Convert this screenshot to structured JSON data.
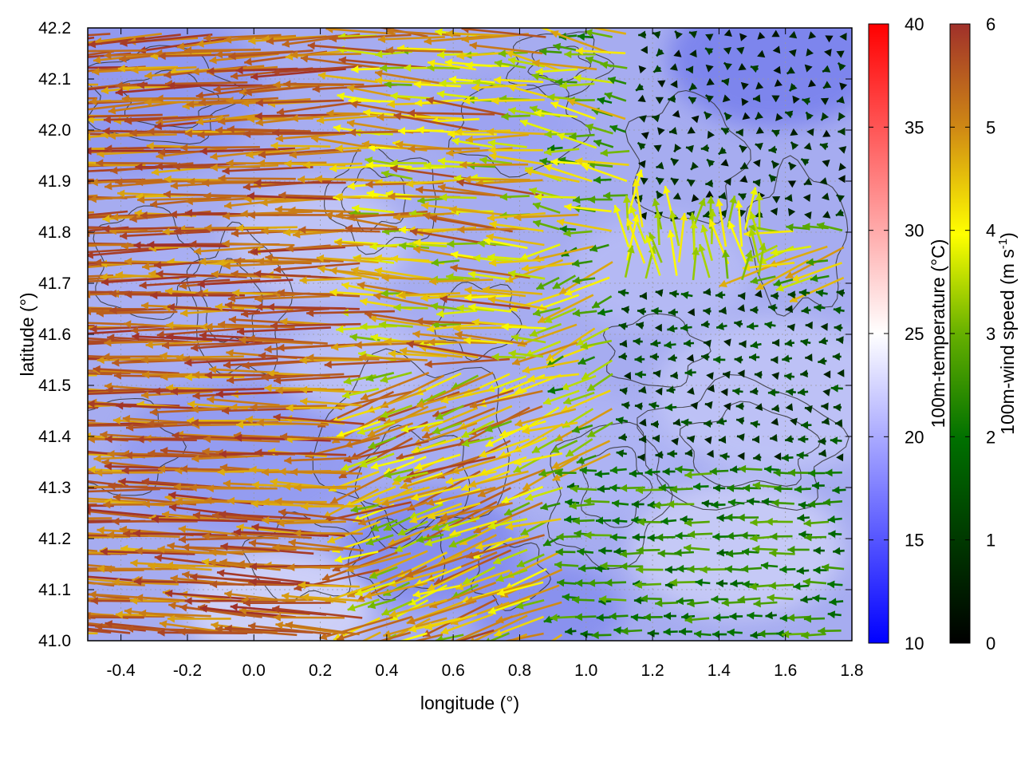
{
  "chart_data": {
    "type": "vector-field",
    "xlabel": "longitude (°)",
    "ylabel": "latitude (°)",
    "xlim": [
      -0.5,
      1.8
    ],
    "ylim": [
      41.0,
      42.2
    ],
    "xticks": [
      "-0.4",
      "-0.2",
      "0.0",
      "0.2",
      "0.4",
      "0.6",
      "0.8",
      "1.0",
      "1.2",
      "1.4",
      "1.6",
      "1.8"
    ],
    "yticks": [
      "41.0",
      "41.1",
      "41.2",
      "41.3",
      "41.4",
      "41.5",
      "41.6",
      "41.7",
      "41.8",
      "41.9",
      "42.0",
      "42.1",
      "42.2"
    ],
    "grid": true,
    "background_field": {
      "name": "100m-temperature",
      "label": "100m-temperature (°C)",
      "range": [
        10,
        40
      ],
      "ticks": [
        "10",
        "15",
        "20",
        "25",
        "30",
        "35",
        "40"
      ],
      "colors": [
        "#0000ff",
        "#ffffff",
        "#ff0000"
      ]
    },
    "vector_field": {
      "name": "100m-wind speed",
      "label_main": "100m-wind speed (m s",
      "label_sup": "-1",
      "label_end": ")",
      "range": [
        0,
        6
      ],
      "ticks": [
        "0",
        "1",
        "2",
        "3",
        "4",
        "5",
        "6"
      ],
      "colors": [
        "#000000",
        "#007000",
        "#ffff00",
        "#c87814",
        "#a0302a"
      ],
      "regimes": [
        {
          "region": "west",
          "speed": "5-6",
          "direction": "westward"
        },
        {
          "region": "center",
          "speed": "3-5",
          "direction": "westward"
        },
        {
          "region": "southeast",
          "speed": "1-3",
          "direction": "westward"
        },
        {
          "region": "northeast",
          "speed": "0-1",
          "direction": "variable"
        },
        {
          "region": "east-central",
          "speed": "3-4",
          "direction": "northward"
        }
      ]
    },
    "contours": "terrain elevation (unlabeled)"
  }
}
